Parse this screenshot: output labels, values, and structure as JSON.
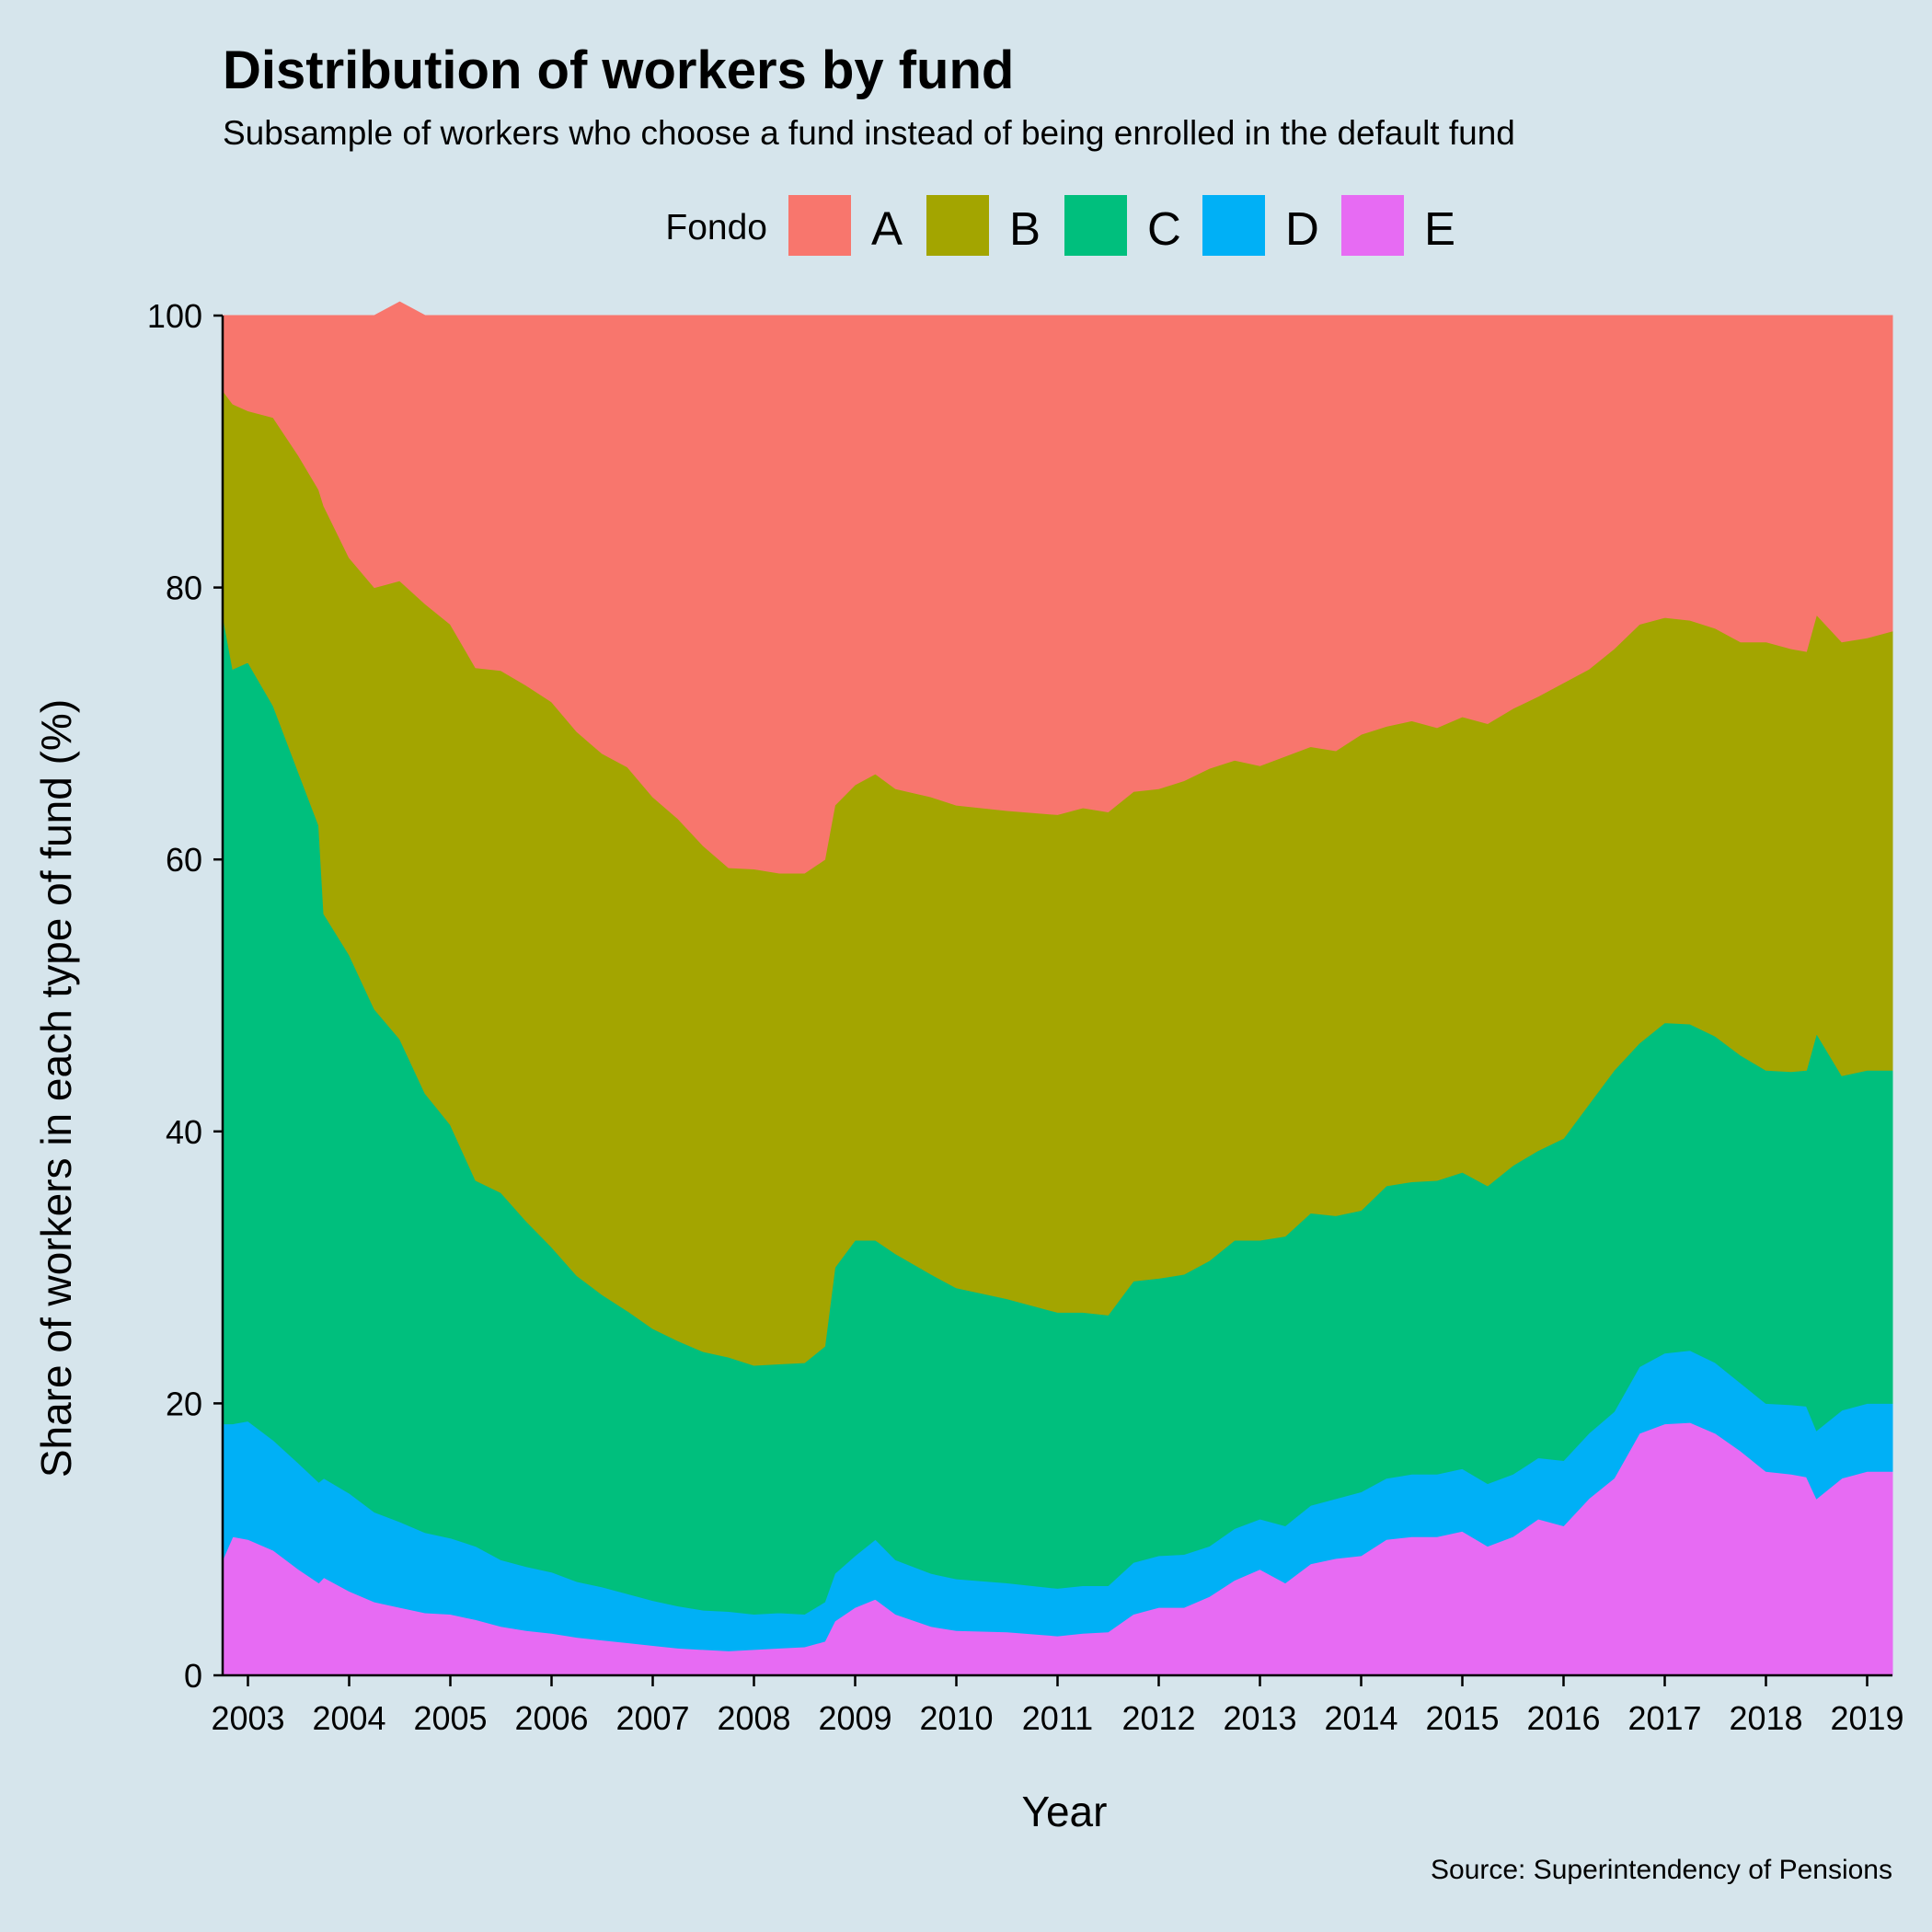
{
  "colors": {
    "background": "#d6e5ec",
    "A": "#f8766d",
    "B": "#a3a500",
    "C": "#00bf7d",
    "D": "#00b0f6",
    "E": "#e76bf3"
  },
  "chart_data": {
    "type": "area",
    "stacked": true,
    "title": "Distribution of workers by fund",
    "subtitle": "Subsample of workers who choose a fund instead of being enrolled in the default fund",
    "xlabel": "Year",
    "ylabel": "Share of workers in each type of fund (%)",
    "caption": "Source: Superintendency of Pensions",
    "legend": {
      "title": "Fondo",
      "position": "top",
      "items": [
        "A",
        "B",
        "C",
        "D",
        "E"
      ]
    },
    "xlim": [
      2002.75,
      2019.25
    ],
    "ylim": [
      0,
      100
    ],
    "x_ticks": [
      2003,
      2004,
      2005,
      2006,
      2007,
      2008,
      2009,
      2010,
      2011,
      2012,
      2013,
      2014,
      2015,
      2016,
      2017,
      2018,
      2019
    ],
    "y_ticks": [
      0,
      20,
      40,
      60,
      80,
      100
    ],
    "grid": false,
    "x": [
      2002.75,
      2002.85,
      2003.0,
      2003.25,
      2003.5,
      2003.7,
      2003.75,
      2004.0,
      2004.25,
      2004.5,
      2004.75,
      2005.0,
      2005.25,
      2005.5,
      2005.75,
      2006.0,
      2006.25,
      2006.5,
      2006.75,
      2007.0,
      2007.25,
      2007.5,
      2007.75,
      2008.0,
      2008.25,
      2008.5,
      2008.7,
      2008.8,
      2009.0,
      2009.2,
      2009.4,
      2009.75,
      2010.0,
      2010.5,
      2011.0,
      2011.25,
      2011.5,
      2011.75,
      2012.0,
      2012.25,
      2012.5,
      2012.75,
      2013.0,
      2013.25,
      2013.5,
      2013.75,
      2014.0,
      2014.25,
      2014.5,
      2014.75,
      2015.0,
      2015.25,
      2015.5,
      2015.75,
      2016.0,
      2016.25,
      2016.5,
      2016.75,
      2017.0,
      2017.25,
      2017.5,
      2017.75,
      2018.0,
      2018.25,
      2018.4,
      2018.5,
      2018.75,
      2019.0,
      2019.25
    ],
    "series": [
      {
        "name": "E",
        "values": [
          8.5,
          10.2,
          10.0,
          9.2,
          7.8,
          6.8,
          7.2,
          6.2,
          5.4,
          5.0,
          4.6,
          4.5,
          4.1,
          3.6,
          3.3,
          3.1,
          2.8,
          2.6,
          2.4,
          2.2,
          2.0,
          1.9,
          1.8,
          1.9,
          2.0,
          2.1,
          2.5,
          4.0,
          5.0,
          5.6,
          4.5,
          3.6,
          3.3,
          3.2,
          2.9,
          3.1,
          3.2,
          4.5,
          5.0,
          5.0,
          5.8,
          7.0,
          7.8,
          6.8,
          8.2,
          8.6,
          8.8,
          10.0,
          10.2,
          10.2,
          10.6,
          9.5,
          10.2,
          11.5,
          11.0,
          13.0,
          14.5,
          17.8,
          18.5,
          18.6,
          17.8,
          16.5,
          15.0,
          14.8,
          14.6,
          13.0,
          14.5,
          15.0,
          15.0
        ]
      },
      {
        "name": "D",
        "values": [
          10.0,
          8.3,
          8.7,
          8.1,
          7.8,
          7.4,
          7.3,
          7.2,
          6.6,
          6.3,
          5.9,
          5.6,
          5.4,
          4.9,
          4.7,
          4.5,
          4.1,
          3.9,
          3.6,
          3.3,
          3.1,
          2.9,
          2.9,
          2.6,
          2.6,
          2.4,
          2.9,
          3.5,
          3.8,
          4.4,
          4.0,
          3.9,
          3.8,
          3.6,
          3.5,
          3.5,
          3.4,
          3.8,
          3.8,
          3.9,
          3.7,
          3.8,
          3.7,
          4.2,
          4.3,
          4.4,
          4.7,
          4.5,
          4.6,
          4.6,
          4.6,
          4.6,
          4.6,
          4.5,
          4.8,
          4.8,
          4.9,
          4.9,
          5.2,
          5.3,
          5.2,
          5.0,
          5.0,
          5.1,
          5.2,
          5.0,
          5.0,
          5.0,
          5.0
        ]
      },
      {
        "name": "C",
        "values": [
          59.5,
          55.5,
          55.8,
          54.0,
          50.8,
          48.3,
          41.5,
          39.6,
          37.0,
          35.5,
          32.3,
          30.4,
          26.9,
          27.0,
          25.4,
          23.9,
          22.5,
          21.5,
          20.8,
          20.0,
          19.5,
          19.0,
          18.7,
          18.3,
          18.3,
          18.5,
          18.8,
          22.5,
          23.2,
          22.0,
          22.5,
          22.0,
          21.4,
          20.9,
          20.3,
          20.1,
          19.9,
          20.7,
          20.4,
          20.6,
          21.0,
          21.2,
          20.5,
          21.3,
          21.5,
          20.8,
          20.7,
          21.5,
          21.5,
          21.6,
          21.8,
          21.9,
          22.7,
          22.6,
          23.7,
          24.2,
          25.1,
          23.8,
          24.3,
          24.0,
          24.0,
          24.1,
          24.5,
          24.5,
          24.7,
          29.2,
          24.6,
          24.5,
          24.5
        ]
      },
      {
        "name": "B",
        "values": [
          16.5,
          19.5,
          18.5,
          21.2,
          23.3,
          24.7,
          30.0,
          29.2,
          31.0,
          33.7,
          36.0,
          36.8,
          37.7,
          38.4,
          39.4,
          40.1,
          40.0,
          39.8,
          40.0,
          39.1,
          38.4,
          37.2,
          36.0,
          36.5,
          36.1,
          36.0,
          35.8,
          34.0,
          33.5,
          34.3,
          34.2,
          35.1,
          35.5,
          35.9,
          36.6,
          37.1,
          37.0,
          36.0,
          36.0,
          36.3,
          36.2,
          35.3,
          34.9,
          35.3,
          34.3,
          34.2,
          35.0,
          33.8,
          33.9,
          33.3,
          33.5,
          34.0,
          33.6,
          33.4,
          33.5,
          32.0,
          31.0,
          30.8,
          29.8,
          29.7,
          30.0,
          30.4,
          31.5,
          31.1,
          30.8,
          30.8,
          31.9,
          31.8,
          32.3
        ]
      },
      {
        "name": "A",
        "values": [
          5.5,
          6.5,
          7.0,
          7.5,
          10.3,
          12.8,
          14.0,
          17.8,
          20.0,
          20.5,
          21.2,
          22.7,
          25.9,
          26.1,
          27.2,
          28.4,
          30.6,
          32.2,
          33.2,
          35.4,
          37.0,
          39.0,
          40.6,
          40.7,
          41.0,
          41.0,
          40.0,
          36.0,
          34.5,
          33.7,
          34.8,
          35.4,
          36.0,
          36.4,
          36.7,
          36.2,
          36.5,
          35.0,
          34.8,
          34.2,
          33.3,
          32.7,
          33.1,
          32.4,
          31.7,
          32.0,
          30.8,
          30.2,
          29.8,
          30.3,
          29.5,
          30.0,
          28.9,
          28.0,
          27.0,
          26.0,
          24.5,
          22.7,
          22.2,
          22.4,
          23.0,
          24.0,
          24.0,
          24.5,
          24.7,
          22.0,
          24.0,
          23.7,
          23.2
        ]
      }
    ]
  }
}
